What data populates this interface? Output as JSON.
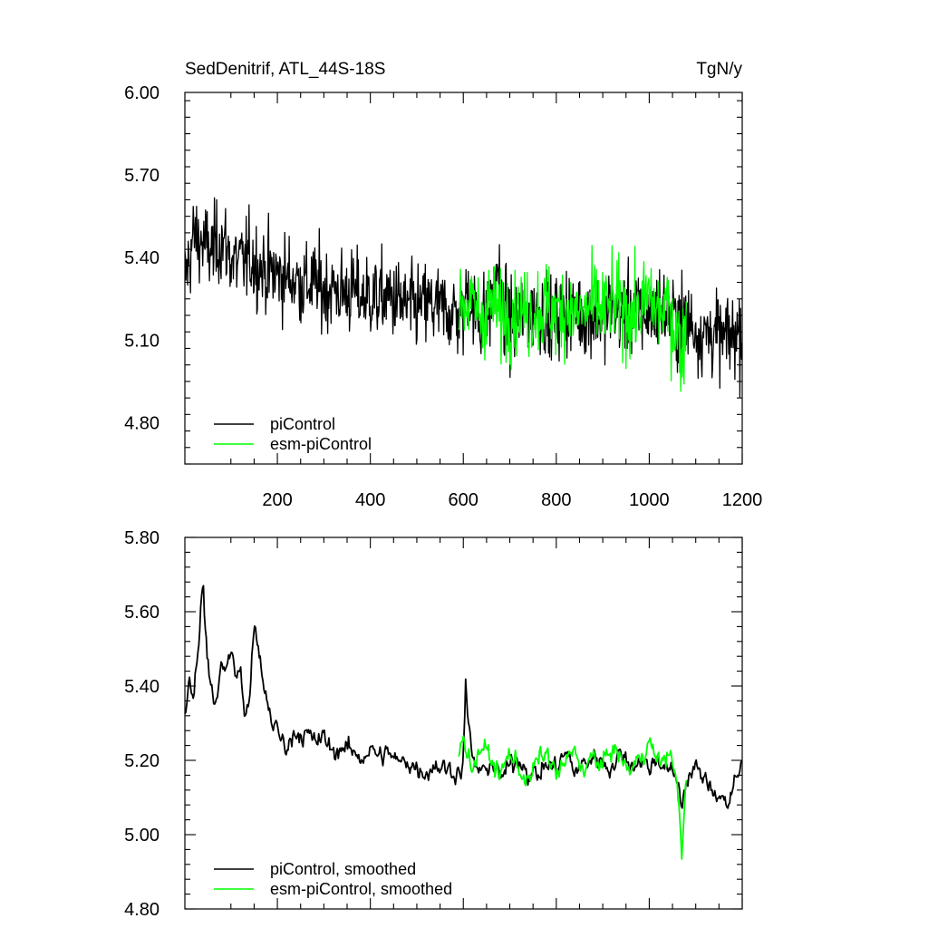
{
  "chart_data": [
    {
      "type": "line",
      "title": "SedDenitrif, ATL_44S-18S",
      "units": "TgN/y",
      "xlim": [
        1,
        1200
      ],
      "ylim": [
        4.65,
        6.0
      ],
      "x_ticks": [
        200,
        400,
        600,
        800,
        1000,
        1200
      ],
      "x_tick_labels": [
        "200",
        "400",
        "600",
        "800",
        "1000",
        "1200"
      ],
      "y_ticks": [
        4.8,
        5.1,
        5.4,
        5.7,
        6.0
      ],
      "y_tick_labels": [
        "4.80",
        "5.10",
        "5.40",
        "5.70",
        "6.00"
      ],
      "grid": false,
      "legend_position": "bottom-left",
      "series": [
        {
          "name": "piControl",
          "color": "#000000",
          "x": [
            1,
            20,
            40,
            60,
            80,
            100,
            120,
            140,
            160,
            180,
            200,
            220,
            240,
            260,
            280,
            300,
            320,
            340,
            360,
            380,
            400,
            420,
            440,
            460,
            480,
            500,
            520,
            540,
            560,
            580,
            600,
            610,
            620,
            640,
            660,
            675,
            680,
            700,
            720,
            740,
            760,
            780,
            800,
            820,
            840,
            860,
            880,
            900,
            920,
            940,
            960,
            980,
            1000,
            1020,
            1040,
            1060,
            1080,
            1100,
            1120,
            1140,
            1160,
            1180,
            1200
          ],
          "values": [
            5.32,
            5.48,
            5.45,
            5.42,
            5.47,
            5.4,
            5.38,
            5.4,
            5.37,
            5.35,
            5.34,
            5.33,
            5.32,
            5.3,
            5.31,
            5.28,
            5.29,
            5.27,
            5.28,
            5.26,
            5.26,
            5.25,
            5.26,
            5.24,
            5.22,
            5.22,
            5.23,
            5.22,
            5.21,
            5.2,
            5.19,
            5.3,
            5.2,
            5.18,
            5.21,
            5.4,
            5.22,
            5.16,
            5.18,
            5.2,
            5.22,
            5.19,
            5.18,
            5.21,
            5.2,
            5.19,
            5.2,
            5.18,
            5.22,
            5.19,
            5.21,
            5.2,
            5.19,
            5.22,
            5.2,
            5.17,
            5.18,
            5.14,
            5.12,
            5.13,
            5.1,
            5.12,
            5.14
          ]
        },
        {
          "name": "esm-piControl",
          "color": "#00ff00",
          "x": [
            590,
            600,
            620,
            640,
            660,
            680,
            700,
            720,
            740,
            760,
            780,
            800,
            820,
            840,
            860,
            880,
            900,
            920,
            940,
            960,
            980,
            1000,
            1020,
            1040,
            1060,
            1070,
            1080
          ],
          "values": [
            5.2,
            5.25,
            5.22,
            5.19,
            5.24,
            5.18,
            5.2,
            5.22,
            5.19,
            5.21,
            5.23,
            5.2,
            5.22,
            5.19,
            5.2,
            5.23,
            5.21,
            5.24,
            5.22,
            5.19,
            5.21,
            5.26,
            5.2,
            5.22,
            5.12,
            5.05,
            5.18
          ]
        }
      ]
    },
    {
      "type": "line",
      "title": "",
      "xlim": [
        1,
        1200
      ],
      "ylim": [
        4.8,
        5.8
      ],
      "x_ticks": [
        200,
        400,
        600,
        800,
        1000,
        1200
      ],
      "y_ticks": [
        4.8,
        5.0,
        5.2,
        5.4,
        5.6,
        5.8
      ],
      "y_tick_labels": [
        "4.80",
        "5.00",
        "5.20",
        "5.40",
        "5.60",
        "5.80"
      ],
      "grid": false,
      "legend_position": "bottom-left",
      "series": [
        {
          "name": "piControl, smoothed",
          "color": "#000000",
          "x": [
            1,
            10,
            20,
            30,
            40,
            50,
            60,
            70,
            80,
            90,
            100,
            110,
            120,
            130,
            140,
            150,
            160,
            170,
            180,
            190,
            200,
            210,
            220,
            240,
            260,
            280,
            300,
            320,
            340,
            360,
            380,
            400,
            420,
            440,
            460,
            480,
            500,
            520,
            540,
            560,
            580,
            600,
            605,
            610,
            620,
            640,
            660,
            680,
            700,
            720,
            740,
            760,
            780,
            800,
            820,
            840,
            860,
            880,
            900,
            920,
            940,
            960,
            980,
            1000,
            1020,
            1040,
            1060,
            1070,
            1075,
            1080,
            1100,
            1120,
            1140,
            1160,
            1170,
            1180,
            1190,
            1200
          ],
          "values": [
            5.33,
            5.42,
            5.38,
            5.52,
            5.68,
            5.45,
            5.38,
            5.35,
            5.48,
            5.44,
            5.5,
            5.42,
            5.46,
            5.3,
            5.38,
            5.56,
            5.48,
            5.4,
            5.35,
            5.3,
            5.28,
            5.25,
            5.24,
            5.28,
            5.27,
            5.25,
            5.26,
            5.22,
            5.24,
            5.22,
            5.21,
            5.23,
            5.21,
            5.22,
            5.19,
            5.2,
            5.18,
            5.17,
            5.19,
            5.18,
            5.17,
            5.18,
            5.42,
            5.3,
            5.2,
            5.16,
            5.2,
            5.15,
            5.18,
            5.21,
            5.17,
            5.16,
            5.19,
            5.18,
            5.22,
            5.17,
            5.19,
            5.21,
            5.2,
            5.18,
            5.22,
            5.19,
            5.2,
            5.18,
            5.21,
            5.17,
            5.15,
            5.08,
            5.12,
            5.15,
            5.18,
            5.14,
            5.12,
            5.1,
            5.08,
            5.12,
            5.15,
            5.2
          ]
        },
        {
          "name": "esm-piControl, smoothed",
          "color": "#00ff00",
          "x": [
            590,
            600,
            610,
            620,
            640,
            660,
            680,
            700,
            720,
            740,
            760,
            780,
            800,
            820,
            840,
            860,
            880,
            900,
            920,
            940,
            960,
            980,
            1000,
            1020,
            1040,
            1060,
            1065,
            1070,
            1075,
            1080
          ],
          "values": [
            5.2,
            5.28,
            5.22,
            5.18,
            5.24,
            5.2,
            5.16,
            5.22,
            5.18,
            5.14,
            5.2,
            5.22,
            5.16,
            5.19,
            5.23,
            5.17,
            5.21,
            5.18,
            5.24,
            5.2,
            5.17,
            5.21,
            5.25,
            5.19,
            5.22,
            5.16,
            5.05,
            4.92,
            5.06,
            5.15
          ]
        }
      ]
    }
  ]
}
